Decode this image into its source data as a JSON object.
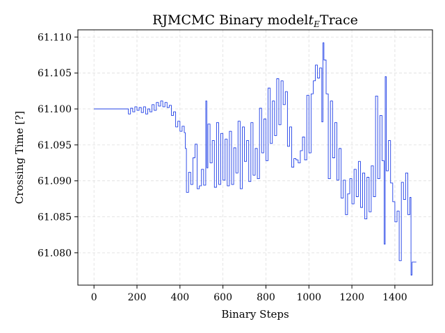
{
  "chart_data": {
    "type": "line",
    "title": "RJMCMC Binary model",
    "title_math": "t",
    "title_math_sub": "E",
    "title_suffix": "Trace",
    "xlabel": "Binary Steps",
    "ylabel": "Crossing Time [?]",
    "xlim": [
      -75,
      1575
    ],
    "ylim": [
      61.0755,
      61.111
    ],
    "xticks": [
      0,
      200,
      400,
      600,
      800,
      1000,
      1200,
      1400
    ],
    "xtick_labels": [
      "0",
      "200",
      "400",
      "600",
      "800",
      "1000",
      "1200",
      "1400"
    ],
    "yticks": [
      61.08,
      61.085,
      61.09,
      61.095,
      61.1,
      61.105,
      61.11
    ],
    "ytick_labels": [
      "61.080",
      "61.085",
      "61.090",
      "61.095",
      "61.100",
      "61.105",
      "61.110"
    ],
    "grid": true,
    "series_color": "#1f3fe6",
    "series": [
      {
        "x": [
          0,
          50,
          100,
          150,
          160,
          170,
          180,
          190,
          200,
          210,
          220,
          230,
          240,
          250,
          260,
          270,
          280,
          290,
          300,
          310,
          320,
          330,
          340,
          350,
          360,
          370,
          380,
          390,
          400,
          410,
          420,
          425,
          430,
          440,
          450,
          460,
          470,
          480,
          490,
          500,
          510,
          520,
          525,
          530,
          540,
          550,
          560,
          570,
          580,
          590,
          600,
          610,
          620,
          630,
          640,
          650,
          660,
          670,
          680,
          690,
          700,
          710,
          720,
          730,
          740,
          750,
          760,
          770,
          780,
          790,
          800,
          810,
          820,
          830,
          840,
          850,
          860,
          870,
          880,
          890,
          900,
          910,
          920,
          930,
          940,
          950,
          960,
          970,
          980,
          990,
          1000,
          1010,
          1020,
          1030,
          1040,
          1050,
          1060,
          1065,
          1070,
          1080,
          1090,
          1100,
          1110,
          1120,
          1130,
          1140,
          1150,
          1160,
          1170,
          1180,
          1190,
          1200,
          1210,
          1220,
          1230,
          1240,
          1250,
          1260,
          1270,
          1280,
          1290,
          1300,
          1310,
          1320,
          1330,
          1340,
          1350,
          1355,
          1360,
          1370,
          1380,
          1390,
          1400,
          1410,
          1420,
          1430,
          1440,
          1450,
          1460,
          1470,
          1475,
          1480,
          1490,
          1500
        ],
        "y": [
          61.1,
          61.1,
          61.1,
          61.1,
          61.0993,
          61.1001,
          61.0996,
          61.1003,
          61.0998,
          61.1002,
          61.0995,
          61.1003,
          61.0993,
          61.1,
          61.0996,
          61.1006,
          61.0998,
          61.1009,
          61.1004,
          61.1011,
          61.1003,
          61.1009,
          61.1002,
          61.1005,
          61.0991,
          61.0996,
          61.0975,
          61.0983,
          61.0969,
          61.0976,
          61.0967,
          61.0945,
          61.0884,
          61.0912,
          61.0895,
          61.0932,
          61.0951,
          61.0889,
          61.0893,
          61.0916,
          61.0894,
          61.1011,
          61.0918,
          61.0979,
          61.0925,
          61.0956,
          61.0891,
          61.0981,
          61.0895,
          61.0966,
          61.0901,
          61.0958,
          61.0893,
          61.0969,
          61.0895,
          61.0946,
          61.0911,
          61.0983,
          61.0889,
          61.0975,
          61.0927,
          61.0956,
          61.0899,
          61.0981,
          61.0908,
          61.0945,
          61.0903,
          61.1001,
          61.0939,
          61.0986,
          61.0928,
          61.1029,
          61.0952,
          61.1011,
          61.0963,
          61.1042,
          61.0978,
          61.1039,
          61.1006,
          61.1024,
          61.0948,
          61.0975,
          61.0919,
          61.0931,
          61.0929,
          61.0925,
          61.0942,
          61.0961,
          61.0929,
          61.1019,
          61.0939,
          61.1021,
          61.1039,
          61.1061,
          61.1043,
          61.1057,
          61.0982,
          61.1092,
          61.1068,
          61.1021,
          61.0903,
          61.1011,
          61.0932,
          61.0981,
          61.0901,
          61.0945,
          61.0876,
          61.0901,
          61.0853,
          61.0882,
          61.0903,
          61.0868,
          61.0916,
          61.0878,
          61.0927,
          61.0863,
          61.0911,
          61.0847,
          61.0905,
          61.0857,
          61.0921,
          61.0878,
          61.1018,
          61.0903,
          61.0991,
          61.0928,
          61.0812,
          61.1045,
          61.0914,
          61.0956,
          61.0897,
          61.0871,
          61.0843,
          61.0858,
          61.0789,
          61.0898,
          61.0874,
          61.0911,
          61.0853,
          61.0877,
          61.0769,
          61.0787,
          61.0787,
          61.0787
        ],
        "note_values": "approximate"
      }
    ]
  }
}
